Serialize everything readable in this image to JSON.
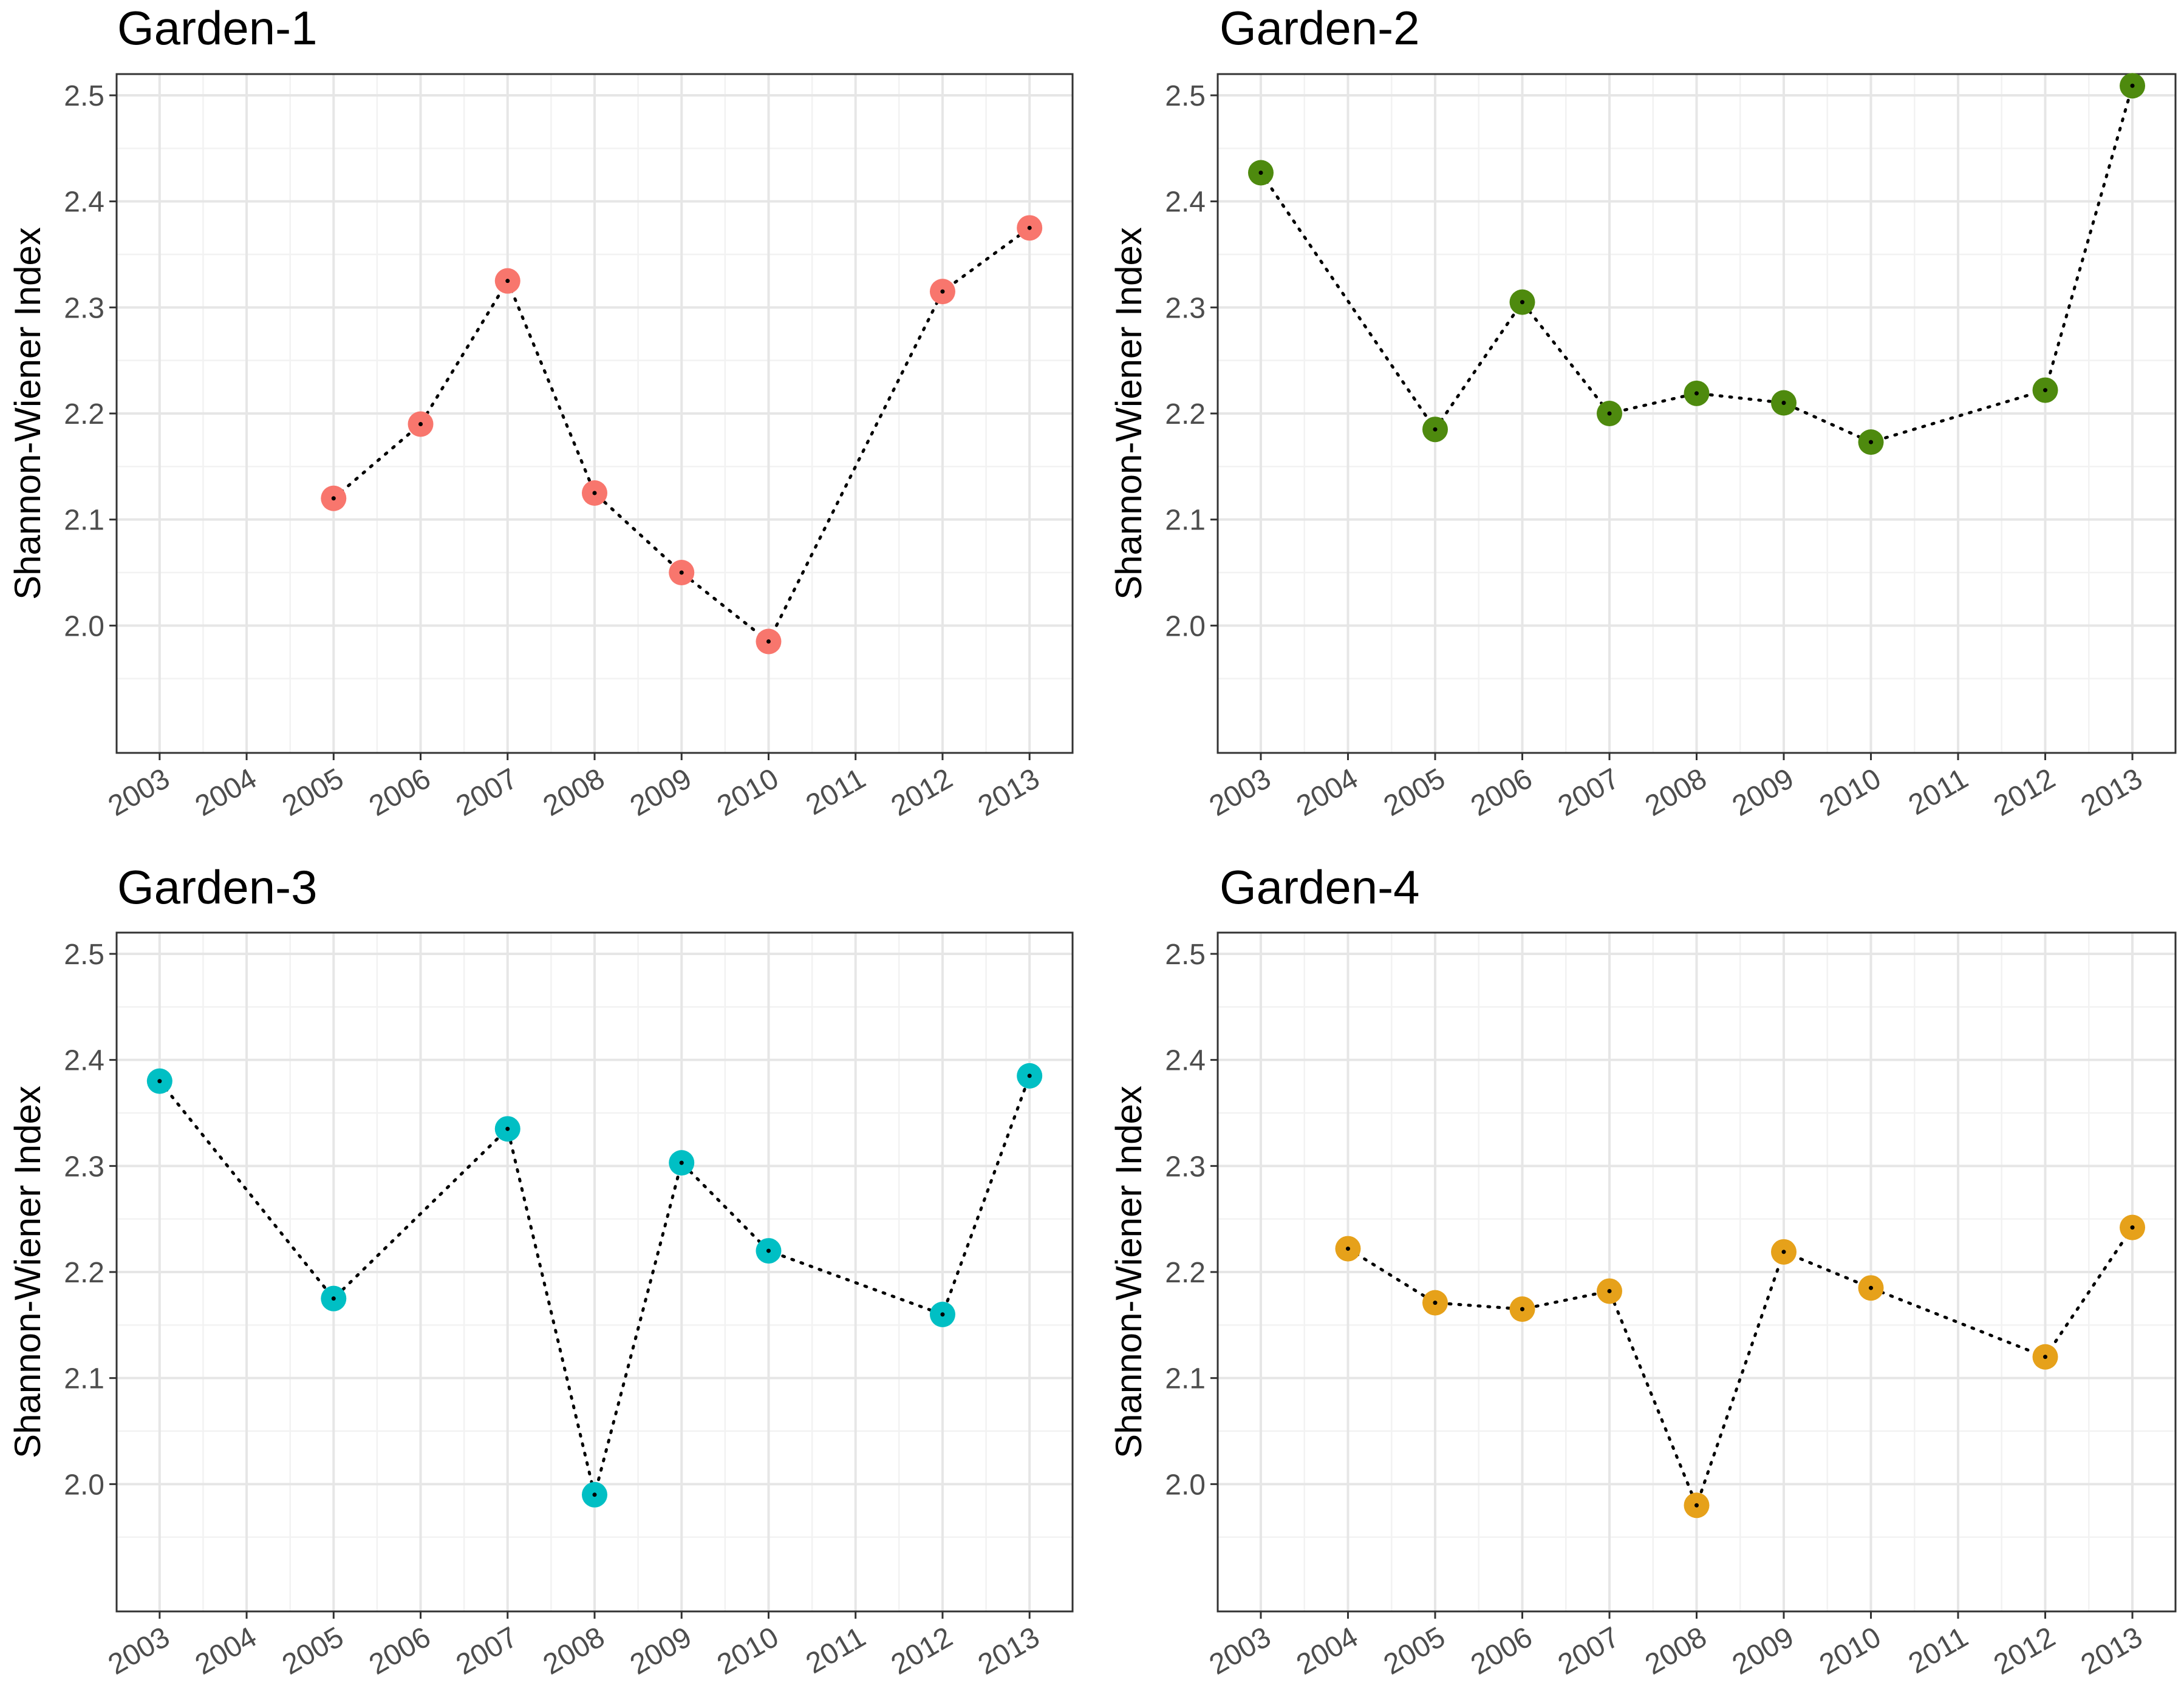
{
  "figure": {
    "ylabel": "Shannon-Wiener Index",
    "yticks": [
      "2.0",
      "2.1",
      "2.2",
      "2.3",
      "2.4",
      "2.5"
    ],
    "xticks": [
      "2003",
      "2004",
      "2005",
      "2006",
      "2007",
      "2008",
      "2009",
      "2010",
      "2011",
      "2012",
      "2013"
    ]
  },
  "chart_data": [
    {
      "type": "scatter",
      "title": "Garden-1",
      "xlabel": "",
      "ylabel": "Shannon-Wiener Index",
      "xlim": [
        2003,
        2013
      ],
      "ylim": [
        1.9,
        2.5
      ],
      "color": "#F8766D",
      "x": [
        2005,
        2006,
        2007,
        2008,
        2009,
        2010,
        2012,
        2013
      ],
      "y": [
        2.12,
        2.19,
        2.325,
        2.125,
        2.05,
        1.985,
        2.315,
        2.375
      ],
      "connector": "dotted line"
    },
    {
      "type": "scatter",
      "title": "Garden-2",
      "xlabel": "",
      "ylabel": "Shannon-Wiener Index",
      "xlim": [
        2003,
        2013
      ],
      "ylim": [
        1.9,
        2.5
      ],
      "color": "#4E8A0E",
      "x": [
        2003,
        2005,
        2006,
        2007,
        2008,
        2009,
        2010,
        2012,
        2013
      ],
      "y": [
        2.427,
        2.185,
        2.305,
        2.2,
        2.219,
        2.21,
        2.173,
        2.222,
        2.509
      ],
      "connector": "dotted line"
    },
    {
      "type": "scatter",
      "title": "Garden-3",
      "xlabel": "",
      "ylabel": "Shannon-Wiener Index",
      "xlim": [
        2003,
        2013
      ],
      "ylim": [
        1.9,
        2.5
      ],
      "color": "#00BFC4",
      "x": [
        2003,
        2005,
        2007,
        2008,
        2009,
        2010,
        2012,
        2013
      ],
      "y": [
        2.38,
        2.175,
        2.335,
        1.99,
        2.303,
        2.22,
        2.16,
        2.385
      ],
      "connector": "dotted line"
    },
    {
      "type": "scatter",
      "title": "Garden-4",
      "xlabel": "",
      "ylabel": "Shannon-Wiener Index",
      "xlim": [
        2003,
        2013
      ],
      "ylim": [
        1.9,
        2.5
      ],
      "color": "#E6A11A",
      "x": [
        2004,
        2005,
        2006,
        2007,
        2008,
        2009,
        2010,
        2012,
        2013
      ],
      "y": [
        2.222,
        2.171,
        2.165,
        2.182,
        1.98,
        2.219,
        2.185,
        2.12,
        2.242
      ],
      "connector": "dotted line"
    }
  ]
}
